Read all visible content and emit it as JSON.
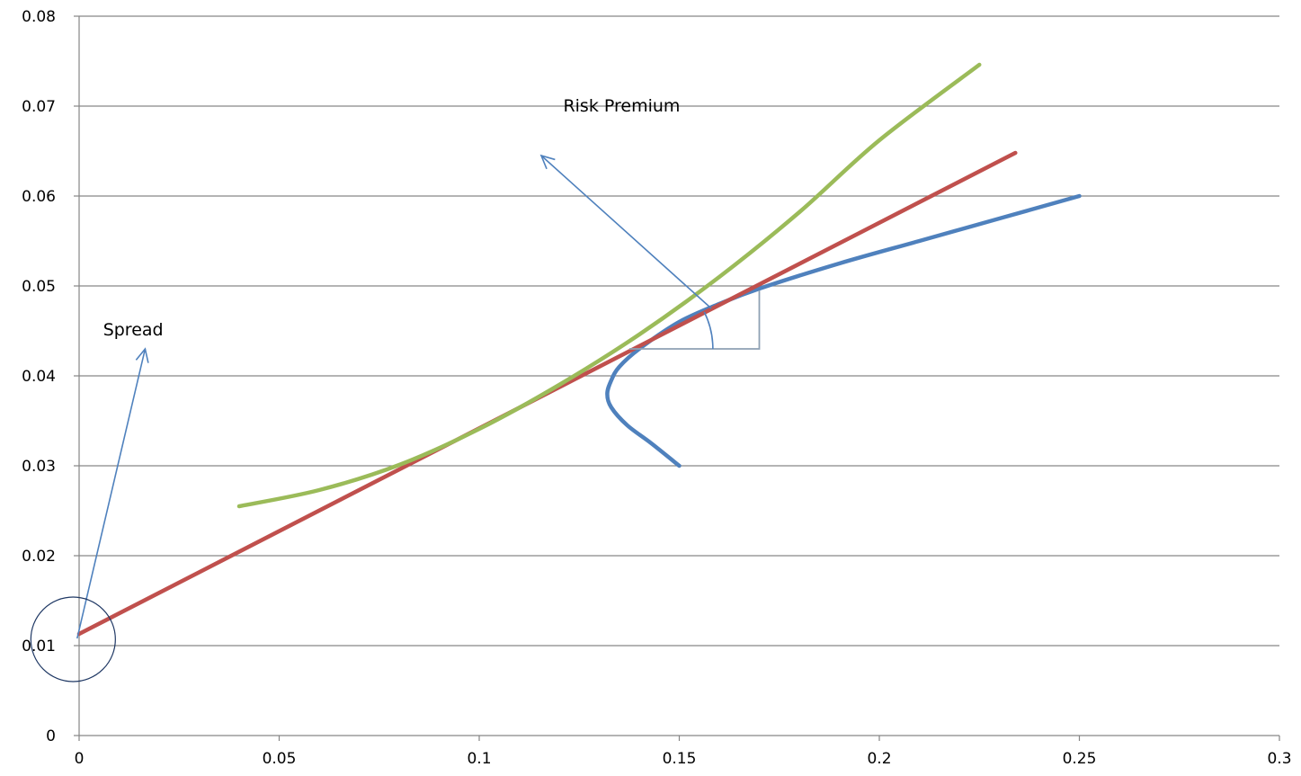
{
  "chart_data": {
    "type": "line",
    "title": "",
    "xlabel": "",
    "ylabel": "",
    "xlim": [
      0,
      0.3
    ],
    "ylim": [
      0,
      0.08
    ],
    "grid": "horizontal",
    "legend": "none",
    "x_ticks": [
      "0",
      "0.05",
      "0.1",
      "0.15",
      "0.2",
      "0.25",
      "0.3"
    ],
    "y_ticks": [
      "0",
      "0.01",
      "0.02",
      "0.03",
      "0.04",
      "0.05",
      "0.06",
      "0.07",
      "0.08"
    ],
    "series": [
      {
        "color": "#4F81BD",
        "points": [
          [
            0.15,
            0.03
          ],
          [
            0.143,
            0.0325
          ],
          [
            0.137,
            0.0345
          ],
          [
            0.133,
            0.0365
          ],
          [
            0.132,
            0.038
          ],
          [
            0.133,
            0.0395
          ],
          [
            0.135,
            0.041
          ],
          [
            0.14,
            0.043
          ],
          [
            0.15,
            0.046
          ],
          [
            0.16,
            0.048
          ],
          [
            0.17,
            0.0497
          ],
          [
            0.19,
            0.0525
          ],
          [
            0.21,
            0.055
          ],
          [
            0.23,
            0.0575
          ],
          [
            0.25,
            0.06
          ]
        ]
      },
      {
        "color": "#C0504D",
        "points": [
          [
            0.0,
            0.0113
          ],
          [
            0.234,
            0.0648
          ]
        ]
      },
      {
        "color": "#9BBB59",
        "points": [
          [
            0.04,
            0.0255
          ],
          [
            0.06,
            0.0273
          ],
          [
            0.08,
            0.0301
          ],
          [
            0.1,
            0.0341
          ],
          [
            0.12,
            0.039
          ],
          [
            0.14,
            0.0446
          ],
          [
            0.16,
            0.051
          ],
          [
            0.18,
            0.0582
          ],
          [
            0.2,
            0.0662
          ],
          [
            0.225,
            0.0746
          ]
        ]
      }
    ],
    "annotations": [
      {
        "text": "Risk Premium",
        "x": 0.121,
        "y": 0.0694
      },
      {
        "text": "Spread",
        "x": 0.006,
        "y": 0.0445
      }
    ],
    "annotation_color": "#4F81BD",
    "triangle_color": "#8EA1B4"
  }
}
